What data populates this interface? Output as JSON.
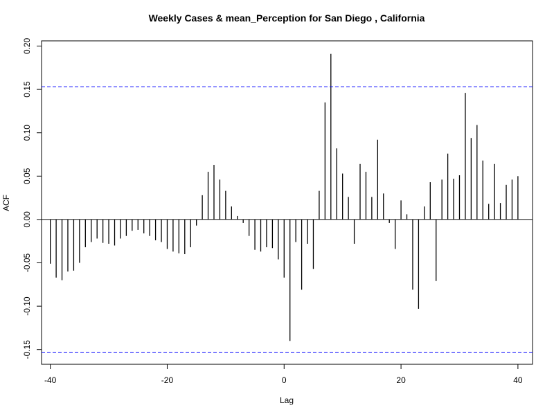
{
  "chart_data": {
    "type": "bar",
    "title": "Weekly Cases & mean_Perception for San Diego , California",
    "xlabel": "Lag",
    "ylabel": "ACF",
    "xlim": [
      -41.5,
      42.5
    ],
    "ylim": [
      -0.167,
      0.206
    ],
    "x_ticks": [
      -40,
      -20,
      0,
      20,
      40
    ],
    "x_tick_labels": [
      "-40",
      "-20",
      "0",
      "20",
      "40"
    ],
    "y_ticks": [
      -0.15,
      -0.1,
      -0.05,
      0.0,
      0.05,
      0.1,
      0.15,
      0.2
    ],
    "y_tick_labels": [
      "-0.15",
      "-0.10",
      "-0.05",
      "0.00",
      "0.05",
      "0.10",
      "0.15",
      "0.20"
    ],
    "confidence_bound": 0.153,
    "confidence_color": "#0000ff",
    "bar_color": "#000000",
    "grid": false,
    "lags": [
      -40,
      -39,
      -38,
      -37,
      -36,
      -35,
      -34,
      -33,
      -32,
      -31,
      -30,
      -29,
      -28,
      -27,
      -26,
      -25,
      -24,
      -23,
      -22,
      -21,
      -20,
      -19,
      -18,
      -17,
      -16,
      -15,
      -14,
      -13,
      -12,
      -11,
      -10,
      -9,
      -8,
      -7,
      -6,
      -5,
      -4,
      -3,
      -2,
      -1,
      0,
      1,
      2,
      3,
      4,
      5,
      6,
      7,
      8,
      9,
      10,
      11,
      12,
      13,
      14,
      15,
      16,
      17,
      18,
      19,
      20,
      21,
      22,
      23,
      24,
      25,
      26,
      27,
      28,
      29,
      30,
      31,
      32,
      33,
      34,
      35,
      36,
      37,
      38,
      39,
      40
    ],
    "values": [
      -0.051,
      -0.067,
      -0.07,
      -0.06,
      -0.059,
      -0.05,
      -0.032,
      -0.026,
      -0.022,
      -0.027,
      -0.028,
      -0.03,
      -0.022,
      -0.019,
      -0.013,
      -0.012,
      -0.016,
      -0.019,
      -0.024,
      -0.026,
      -0.034,
      -0.037,
      -0.039,
      -0.04,
      -0.032,
      -0.007,
      0.028,
      0.055,
      0.063,
      0.046,
      0.033,
      0.015,
      0.004,
      -0.004,
      -0.019,
      -0.035,
      -0.037,
      -0.032,
      -0.033,
      -0.046,
      -0.067,
      -0.14,
      -0.026,
      -0.081,
      -0.028,
      -0.057,
      0.033,
      0.135,
      0.191,
      0.082,
      0.053,
      0.026,
      -0.028,
      0.064,
      0.055,
      0.026,
      0.092,
      0.03,
      -0.004,
      -0.034,
      0.022,
      0.006,
      -0.081,
      -0.103,
      0.015,
      0.043,
      -0.071,
      0.046,
      0.076,
      0.047,
      0.051,
      0.146,
      0.094,
      0.109,
      0.068,
      0.018,
      0.064,
      0.019,
      0.04,
      0.046,
      0.05
    ]
  }
}
